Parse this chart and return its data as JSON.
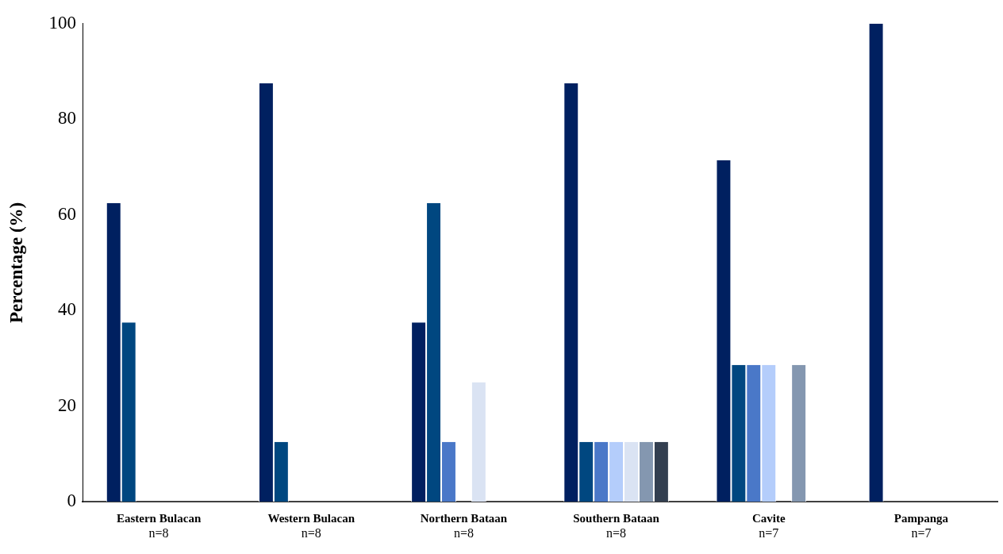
{
  "chart_data": {
    "type": "bar",
    "ylabel": "Percentage (%)",
    "categories": [
      "Eastern Bulacan\nn=8",
      "Western Bulacan\nn=8",
      "Northern Bataan\nn=8",
      "Southern Bataan\nn=8",
      "Cavite\nn=7",
      "Pampanga\nn=7"
    ],
    "series": [
      {
        "color": "#002060",
        "values": [
          62.5,
          87.5,
          37.5,
          87.5,
          71.4,
          100
        ]
      },
      {
        "color": "#004780",
        "values": [
          37.5,
          12.5,
          62.5,
          12.5,
          28.6,
          0
        ]
      },
      {
        "color": "#4a78c8",
        "values": [
          0,
          0,
          12.5,
          12.5,
          28.6,
          0
        ]
      },
      {
        "color": "#b4cdfb",
        "values": [
          0,
          0,
          0,
          12.5,
          28.6,
          0
        ]
      },
      {
        "color": "#dae3f3",
        "values": [
          0,
          0,
          25,
          12.5,
          0,
          0
        ]
      },
      {
        "color": "#8497b0",
        "values": [
          0,
          0,
          0,
          12.5,
          28.6,
          0
        ]
      },
      {
        "color": "#333f50",
        "values": [
          0,
          0,
          0,
          12.5,
          0,
          0
        ]
      }
    ],
    "ylim": [
      0,
      100
    ],
    "yticks": [
      0,
      20,
      40,
      60,
      80,
      100
    ],
    "grid": false,
    "legend": false
  }
}
